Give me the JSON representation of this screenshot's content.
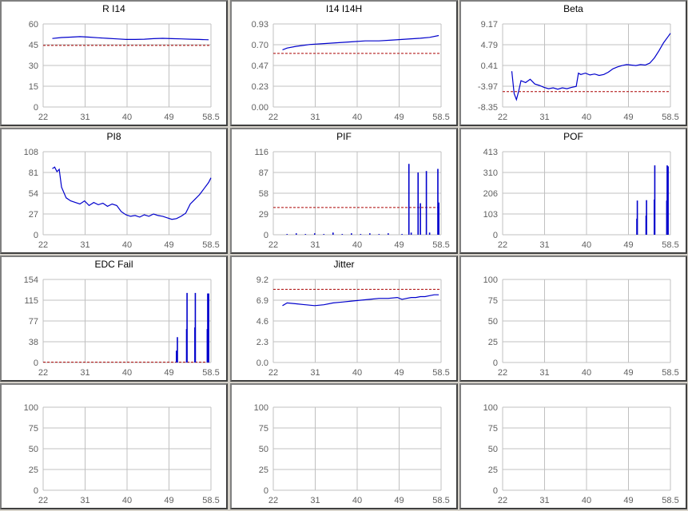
{
  "colors": {
    "grid": "#c0c0c0",
    "series": "#0000cc",
    "threshold": "#aa0000",
    "ticks": "#606060"
  },
  "chart_data": [
    {
      "type": "line",
      "title": "R I14",
      "xticks": [
        "22",
        "31",
        "40",
        "49",
        "58.5"
      ],
      "xlim": [
        22,
        58.5
      ],
      "yticks": [
        "0",
        "15",
        "30",
        "45",
        "60"
      ],
      "ylim": [
        0,
        60
      ],
      "threshold": 44.5,
      "series": [
        {
          "x": [
            24,
            26,
            28,
            30,
            32,
            34,
            36,
            38,
            40,
            42,
            44,
            46,
            48,
            50,
            52,
            54,
            56,
            58
          ],
          "y": [
            49.5,
            50.2,
            50.5,
            50.8,
            50.5,
            50.0,
            49.6,
            49.2,
            48.8,
            48.8,
            49.0,
            49.4,
            49.6,
            49.4,
            49.2,
            49.0,
            48.8,
            48.6
          ]
        }
      ]
    },
    {
      "type": "line",
      "title": "I14 I14H",
      "xticks": [
        "22",
        "31",
        "40",
        "49",
        "58.5"
      ],
      "xlim": [
        22,
        58.5
      ],
      "yticks": [
        "0.00",
        "0.23",
        "0.47",
        "0.70",
        "0.93"
      ],
      "ylim": [
        0,
        0.93
      ],
      "threshold": 0.6,
      "series": [
        {
          "x": [
            24,
            25,
            27,
            30,
            33,
            36,
            39,
            42,
            45,
            48,
            51,
            54,
            56,
            58
          ],
          "y": [
            0.64,
            0.66,
            0.68,
            0.7,
            0.71,
            0.72,
            0.73,
            0.74,
            0.74,
            0.75,
            0.76,
            0.77,
            0.78,
            0.8
          ]
        }
      ]
    },
    {
      "type": "line",
      "title": "Beta",
      "xticks": [
        "22",
        "31",
        "40",
        "49",
        "58.5"
      ],
      "xlim": [
        22,
        58.5
      ],
      "yticks": [
        "-8.35",
        "-3.97",
        "0.41",
        "4.79",
        "9.17"
      ],
      "ylim": [
        -8.35,
        9.17
      ],
      "threshold": -5.1,
      "series": [
        {
          "x": [
            24,
            24.5,
            25,
            25.5,
            26,
            27,
            28,
            29,
            30,
            31,
            32,
            33,
            34,
            35,
            36,
            37,
            38,
            38.5,
            39,
            40,
            41,
            42,
            43,
            44,
            45,
            46,
            47,
            48,
            49,
            50,
            51,
            52,
            53,
            54,
            55,
            56,
            57,
            58,
            58.5
          ],
          "y": [
            -0.8,
            -5.5,
            -6.8,
            -5.0,
            -2.8,
            -3.2,
            -2.5,
            -3.5,
            -3.8,
            -4.2,
            -4.5,
            -4.3,
            -4.6,
            -4.3,
            -4.5,
            -4.2,
            -4.0,
            -1.2,
            -1.5,
            -1.2,
            -1.6,
            -1.4,
            -1.7,
            -1.5,
            -1.0,
            -0.3,
            0.1,
            0.4,
            0.6,
            0.5,
            0.4,
            0.6,
            0.5,
            0.9,
            2.0,
            3.5,
            5.2,
            6.5,
            7.2
          ]
        }
      ]
    },
    {
      "type": "line",
      "title": "PI8",
      "xticks": [
        "22",
        "31",
        "40",
        "49",
        "58.5"
      ],
      "xlim": [
        22,
        58.5
      ],
      "yticks": [
        "0",
        "27",
        "54",
        "81",
        "108"
      ],
      "ylim": [
        0,
        108
      ],
      "threshold": null,
      "series": [
        {
          "x": [
            24,
            24.5,
            25,
            25.5,
            26,
            27,
            28,
            29,
            30,
            31,
            32,
            33,
            34,
            35,
            36,
            37,
            38,
            39,
            40,
            41,
            42,
            43,
            44,
            45,
            46,
            47,
            48,
            49,
            50,
            51,
            52,
            53,
            54,
            55,
            56,
            57,
            58,
            58.5
          ],
          "y": [
            86,
            88,
            82,
            85,
            62,
            48,
            44,
            42,
            40,
            44,
            38,
            42,
            39,
            41,
            37,
            40,
            38,
            30,
            26,
            24,
            25,
            23,
            26,
            24,
            27,
            25,
            24,
            22,
            20,
            21,
            24,
            28,
            40,
            46,
            52,
            60,
            68,
            74
          ]
        }
      ]
    },
    {
      "type": "spikes",
      "title": "PIF",
      "xticks": [
        "22",
        "31",
        "40",
        "49",
        "58.5"
      ],
      "xlim": [
        22,
        58.5
      ],
      "yticks": [
        "0",
        "29",
        "58",
        "87",
        "116"
      ],
      "ylim": [
        0,
        116
      ],
      "threshold": 38,
      "spikes": [
        [
          25,
          1
        ],
        [
          27,
          2
        ],
        [
          29,
          1
        ],
        [
          31,
          2
        ],
        [
          33,
          1
        ],
        [
          35,
          3
        ],
        [
          37,
          1
        ],
        [
          39,
          2
        ],
        [
          41,
          1
        ],
        [
          43,
          2
        ],
        [
          45,
          1
        ],
        [
          47,
          2
        ],
        [
          50,
          1
        ],
        [
          51.5,
          99
        ],
        [
          52,
          3
        ],
        [
          53.5,
          87
        ],
        [
          54,
          44
        ],
        [
          55.3,
          89
        ],
        [
          56,
          3
        ],
        [
          57.8,
          92
        ],
        [
          58,
          45
        ]
      ]
    },
    {
      "type": "spikes",
      "title": "POF",
      "xticks": [
        "22",
        "31",
        "40",
        "49",
        "58.5"
      ],
      "xlim": [
        22,
        58.5
      ],
      "yticks": [
        "0",
        "103",
        "206",
        "310",
        "413"
      ],
      "ylim": [
        0,
        413
      ],
      "threshold": null,
      "spikes": [
        [
          51.2,
          80
        ],
        [
          51.3,
          170
        ],
        [
          53.2,
          95
        ],
        [
          53.3,
          172
        ],
        [
          55.0,
          175
        ],
        [
          55.1,
          345
        ],
        [
          57.7,
          170
        ],
        [
          57.8,
          345
        ],
        [
          58.0,
          340
        ]
      ]
    },
    {
      "type": "spikes",
      "title": "EDC Fail",
      "xticks": [
        "22",
        "31",
        "40",
        "49",
        "58.5"
      ],
      "xlim": [
        22,
        58.5
      ],
      "yticks": [
        "0",
        "38",
        "77",
        "115",
        "154"
      ],
      "ylim": [
        0,
        154
      ],
      "threshold": 0.5,
      "spikes": [
        [
          51.0,
          22
        ],
        [
          51.2,
          47
        ],
        [
          53.2,
          62
        ],
        [
          53.3,
          129
        ],
        [
          55.0,
          65
        ],
        [
          55.1,
          129
        ],
        [
          57.7,
          62
        ],
        [
          57.8,
          128
        ],
        [
          58.0,
          128
        ]
      ]
    },
    {
      "type": "line",
      "title": "Jitter",
      "xticks": [
        "22",
        "31",
        "40",
        "49",
        "58.5"
      ],
      "xlim": [
        22,
        58.5
      ],
      "yticks": [
        "0.0",
        "2.3",
        "4.6",
        "6.9",
        "9.2"
      ],
      "ylim": [
        0,
        9.2
      ],
      "threshold": 8.1,
      "series": [
        {
          "x": [
            24,
            25,
            27,
            29,
            31,
            33,
            35,
            37,
            39,
            41,
            43,
            45,
            47,
            49,
            50,
            51,
            52,
            53,
            54,
            55,
            56,
            57,
            58
          ],
          "y": [
            6.3,
            6.6,
            6.5,
            6.4,
            6.3,
            6.4,
            6.6,
            6.7,
            6.8,
            6.9,
            7.0,
            7.1,
            7.1,
            7.2,
            7.0,
            7.1,
            7.2,
            7.2,
            7.3,
            7.3,
            7.4,
            7.5,
            7.5
          ]
        }
      ]
    },
    {
      "type": "line",
      "title": "",
      "xticks": [
        "22",
        "31",
        "40",
        "49",
        "58.5"
      ],
      "xlim": [
        22,
        58.5
      ],
      "yticks": [
        "0",
        "25",
        "50",
        "75",
        "100"
      ],
      "ylim": [
        0,
        100
      ],
      "threshold": null,
      "series": []
    },
    {
      "type": "line",
      "title": "",
      "xticks": [
        "22",
        "31",
        "40",
        "49",
        "58.5"
      ],
      "xlim": [
        22,
        58.5
      ],
      "yticks": [
        "0",
        "25",
        "50",
        "75",
        "100"
      ],
      "ylim": [
        0,
        100
      ],
      "threshold": null,
      "series": []
    },
    {
      "type": "line",
      "title": "",
      "xticks": [
        "22",
        "31",
        "40",
        "49",
        "58.5"
      ],
      "xlim": [
        22,
        58.5
      ],
      "yticks": [
        "0",
        "25",
        "50",
        "75",
        "100"
      ],
      "ylim": [
        0,
        100
      ],
      "threshold": null,
      "series": []
    },
    {
      "type": "line",
      "title": "",
      "xticks": [
        "22",
        "31",
        "40",
        "49",
        "58.5"
      ],
      "xlim": [
        22,
        58.5
      ],
      "yticks": [
        "0",
        "25",
        "50",
        "75",
        "100"
      ],
      "ylim": [
        0,
        100
      ],
      "threshold": null,
      "series": []
    }
  ]
}
